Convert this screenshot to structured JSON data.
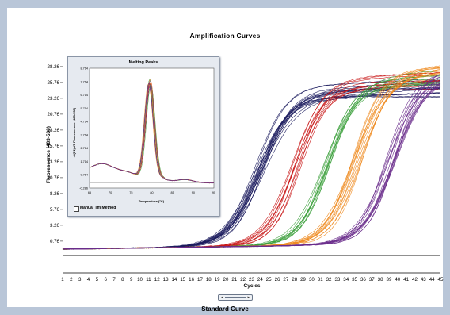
{
  "chart_data": [
    {
      "type": "line",
      "title": "Amplification Curves",
      "xlabel": "Cycles",
      "ylabel": "Fluorescence (483-533)",
      "xlim": [
        1,
        45
      ],
      "ylim": [
        -1.5,
        29
      ],
      "x_ticks": [
        "1",
        "2",
        "3",
        "4",
        "5",
        "6",
        "7",
        "8",
        "9",
        "10",
        "11",
        "12",
        "13",
        "14",
        "15",
        "16",
        "17",
        "18",
        "19",
        "20",
        "21",
        "22",
        "23",
        "24",
        "25",
        "26",
        "27",
        "28",
        "29",
        "30",
        "31",
        "32",
        "33",
        "34",
        "35",
        "36",
        "37",
        "38",
        "39",
        "40",
        "41",
        "42",
        "43",
        "44",
        "45"
      ],
      "y_ticks": [
        "28.26",
        "25.76",
        "23.26",
        "20.76",
        "18.26",
        "15.76",
        "13.26",
        "10.76",
        "8.26",
        "5.76",
        "3.26",
        "0.76"
      ],
      "y_tick_values": [
        28.26,
        25.76,
        23.26,
        20.76,
        18.26,
        15.76,
        13.26,
        10.76,
        8.26,
        5.76,
        3.26,
        0.76
      ],
      "baseline": -0.5,
      "grid": false,
      "legend": "none",
      "series": [
        {
          "color": "#1c1c5e",
          "midpoint": 24.0,
          "plateau": 24.2,
          "slope": 0.55,
          "replicates": 18
        },
        {
          "color": "#c81414",
          "midpoint": 28.3,
          "plateau": 25.5,
          "slope": 0.6,
          "replicates": 10
        },
        {
          "color": "#3ca03c",
          "midpoint": 31.8,
          "plateau": 25.8,
          "slope": 0.6,
          "replicates": 10
        },
        {
          "color": "#ee8a1e",
          "midpoint": 35.4,
          "plateau": 26.8,
          "slope": 0.58,
          "replicates": 12
        },
        {
          "color": "#6a2d8c",
          "midpoint": 39.3,
          "plateau": 26.5,
          "slope": 0.58,
          "replicates": 14
        }
      ]
    },
    {
      "type": "line",
      "title": "Melting Peaks",
      "xlabel": "Temperature (°C)",
      "ylabel": "-d(F1)/dT Fluorescence (483-533)",
      "xlim": [
        65,
        95
      ],
      "ylim": [
        -0.286,
        8.714
      ],
      "x_ticks": [
        "65",
        "70",
        "75",
        "80",
        "85",
        "90",
        "95"
      ],
      "y_ticks": [
        "8.714",
        "7.714",
        "6.714",
        "5.714",
        "4.714",
        "3.714",
        "2.714",
        "1.714",
        "0.714",
        "-0.286"
      ],
      "y_tick_values": [
        8.714,
        7.714,
        6.714,
        5.714,
        4.714,
        3.714,
        2.714,
        1.714,
        0.714,
        -0.286
      ],
      "peak_temperature": 79.5,
      "peak_height": 7.3,
      "series_colors": [
        "#1c1c5e",
        "#c81414",
        "#3ca03c",
        "#ee8a1e",
        "#6a2d8c"
      ],
      "grid": false,
      "legend": "none"
    }
  ],
  "inset": {
    "checkbox_label": "Manual Tm Method",
    "checkbox_checked": false
  },
  "footer": {
    "label": "Standard Curve"
  },
  "scrollbar": {
    "left_arrow": "◂",
    "right_arrow": "▸"
  }
}
